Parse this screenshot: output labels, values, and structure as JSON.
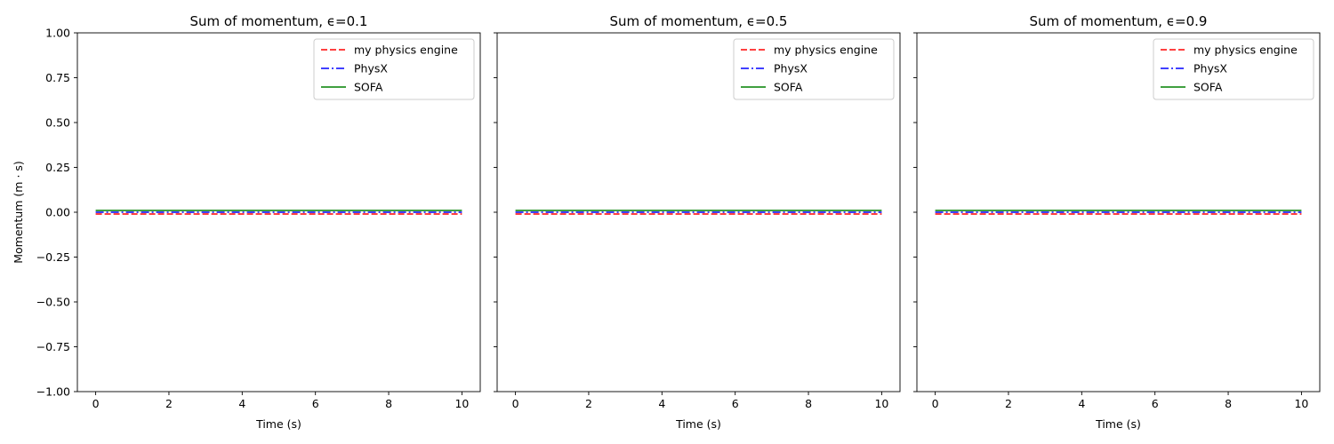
{
  "chart_data": [
    {
      "type": "line",
      "title": "Sum of momentum, ϵ=0.1",
      "xlabel": "Time (s)",
      "ylabel": "Momentum (m · s)",
      "xlim": [
        -0.5,
        10.5
      ],
      "ylim": [
        -1.0,
        1.0
      ],
      "xticks": [
        0,
        2,
        4,
        6,
        8,
        10
      ],
      "yticks": [
        -1.0,
        -0.75,
        -0.5,
        -0.25,
        0.0,
        0.25,
        0.5,
        0.75,
        1.0
      ],
      "xtick_labels": [
        "0",
        "2",
        "4",
        "6",
        "8",
        "10"
      ],
      "ytick_labels": [
        "−1.00",
        "−0.75",
        "−0.50",
        "−0.25",
        "0.00",
        "0.25",
        "0.50",
        "0.75",
        "1.00"
      ],
      "legend_position": "top-right",
      "series": [
        {
          "name": "my physics engine",
          "color": "#ff0000",
          "dash": "dashed",
          "x": [
            0,
            10
          ],
          "y": [
            -0.01,
            -0.01
          ]
        },
        {
          "name": "PhysX",
          "color": "#0000ff",
          "dash": "dashdot",
          "x": [
            0,
            10
          ],
          "y": [
            0.0,
            0.0
          ]
        },
        {
          "name": "SOFA",
          "color": "#008000",
          "dash": "solid",
          "x": [
            0,
            10
          ],
          "y": [
            0.01,
            0.01
          ]
        }
      ]
    },
    {
      "type": "line",
      "title": "Sum of momentum, ϵ=0.5",
      "xlabel": "Time (s)",
      "ylabel": "",
      "xlim": [
        -0.5,
        10.5
      ],
      "ylim": [
        -1.0,
        1.0
      ],
      "xticks": [
        0,
        2,
        4,
        6,
        8,
        10
      ],
      "yticks": [
        -1.0,
        -0.75,
        -0.5,
        -0.25,
        0.0,
        0.25,
        0.5,
        0.75,
        1.0
      ],
      "xtick_labels": [
        "0",
        "2",
        "4",
        "6",
        "8",
        "10"
      ],
      "ytick_labels": [],
      "legend_position": "top-right",
      "series": [
        {
          "name": "my physics engine",
          "color": "#ff0000",
          "dash": "dashed",
          "x": [
            0,
            10
          ],
          "y": [
            -0.01,
            -0.01
          ]
        },
        {
          "name": "PhysX",
          "color": "#0000ff",
          "dash": "dashdot",
          "x": [
            0,
            10
          ],
          "y": [
            0.0,
            0.0
          ]
        },
        {
          "name": "SOFA",
          "color": "#008000",
          "dash": "solid",
          "x": [
            0,
            10
          ],
          "y": [
            0.01,
            0.01
          ]
        }
      ]
    },
    {
      "type": "line",
      "title": "Sum of momentum, ϵ=0.9",
      "xlabel": "Time (s)",
      "ylabel": "",
      "xlim": [
        -0.5,
        10.5
      ],
      "ylim": [
        -1.0,
        1.0
      ],
      "xticks": [
        0,
        2,
        4,
        6,
        8,
        10
      ],
      "yticks": [
        -1.0,
        -0.75,
        -0.5,
        -0.25,
        0.0,
        0.25,
        0.5,
        0.75,
        1.0
      ],
      "xtick_labels": [
        "0",
        "2",
        "4",
        "6",
        "8",
        "10"
      ],
      "ytick_labels": [],
      "legend_position": "top-right",
      "series": [
        {
          "name": "my physics engine",
          "color": "#ff0000",
          "dash": "dashed",
          "x": [
            0,
            10
          ],
          "y": [
            -0.01,
            -0.01
          ]
        },
        {
          "name": "PhysX",
          "color": "#0000ff",
          "dash": "dashdot",
          "x": [
            0,
            10
          ],
          "y": [
            0.0,
            0.0
          ]
        },
        {
          "name": "SOFA",
          "color": "#008000",
          "dash": "solid",
          "x": [
            0,
            10
          ],
          "y": [
            0.01,
            0.01
          ]
        }
      ]
    }
  ]
}
